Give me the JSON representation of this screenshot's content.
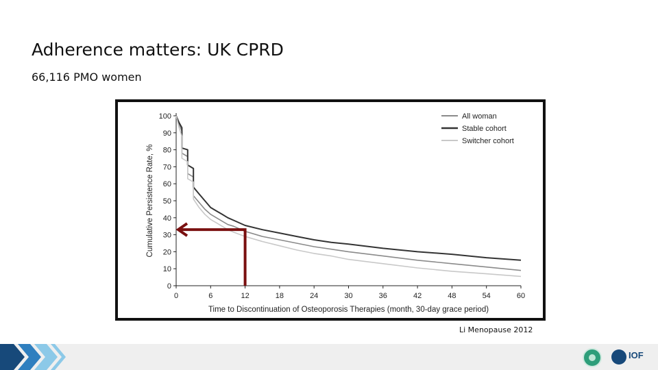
{
  "slide": {
    "title": "Adherence matters: UK CPRD",
    "subtitle": "66,116 PMO women",
    "citation": "Li Menopause 2012"
  },
  "footer": {
    "logos": [
      "circular-green-logo-icon",
      "iof-logo-icon"
    ],
    "iof_text": "IOF"
  },
  "colors": {
    "all_woman": "#8a8a8a",
    "stable_cohort": "#333333",
    "switcher_cohort": "#c8c8c8",
    "annotation_arrow": "#7a1010",
    "chevron_dark": "#17497a",
    "chevron_mid": "#2f7fbf",
    "chevron_light": "#8cc9e8"
  },
  "chart_data": {
    "type": "line",
    "xlabel": "Time to Discontinuation of Osteoporosis Therapies (month, 30-day grace period)",
    "ylabel": "Cumulative Persistence Rate, %",
    "xlim": [
      0,
      60
    ],
    "ylim": [
      0,
      100
    ],
    "xticks": [
      0,
      6,
      12,
      18,
      24,
      30,
      36,
      42,
      48,
      54,
      60
    ],
    "yticks": [
      0,
      10,
      20,
      30,
      40,
      50,
      60,
      70,
      80,
      90,
      100
    ],
    "grid": false,
    "legend_position": "top-right",
    "series": [
      {
        "name": "All woman",
        "color_key": "all_woman",
        "x": [
          0,
          0.5,
          1,
          1,
          2,
          2,
          3,
          3,
          4,
          5,
          6,
          7,
          8,
          9,
          10,
          12,
          15,
          18,
          21,
          24,
          27,
          30,
          36,
          42,
          48,
          54,
          60
        ],
        "y": [
          100,
          95,
          91,
          78,
          76,
          66,
          64,
          53,
          49,
          45,
          42,
          40,
          38,
          36,
          35,
          32,
          29,
          27,
          25,
          23,
          21.5,
          20,
          17.5,
          15,
          13,
          11,
          9
        ]
      },
      {
        "name": "Stable cohort",
        "color_key": "stable_cohort",
        "x": [
          0,
          0.5,
          1,
          1,
          2,
          2,
          3,
          3,
          4,
          5,
          6,
          7,
          8,
          9,
          10,
          12,
          15,
          18,
          21,
          24,
          27,
          30,
          36,
          42,
          48,
          54,
          60
        ],
        "y": [
          100,
          96,
          93,
          81,
          80,
          71,
          69,
          58,
          54,
          50,
          46,
          44,
          42,
          40,
          38.5,
          35.5,
          33,
          31,
          29,
          27,
          25.5,
          24.5,
          22,
          20,
          18.5,
          16.5,
          15
        ]
      },
      {
        "name": "Switcher cohort",
        "color_key": "switcher_cohort",
        "x": [
          0,
          0.5,
          1,
          1,
          2,
          2,
          3,
          3,
          4,
          5,
          6,
          7,
          8,
          9,
          10,
          12,
          15,
          18,
          21,
          24,
          27,
          30,
          36,
          42,
          48,
          54,
          60
        ],
        "y": [
          100,
          93,
          88,
          75,
          73,
          63,
          61,
          51,
          46,
          42,
          39,
          37,
          35,
          33,
          31.5,
          29,
          26,
          23.5,
          21,
          19,
          17.5,
          15.5,
          13,
          10.5,
          8.5,
          7,
          5.5
        ]
      }
    ],
    "annotation": {
      "type": "arrow",
      "from": {
        "x": 12,
        "y": 0
      },
      "corner": {
        "x": 12,
        "y": 33
      },
      "to": {
        "x": 0,
        "y": 33
      }
    }
  }
}
